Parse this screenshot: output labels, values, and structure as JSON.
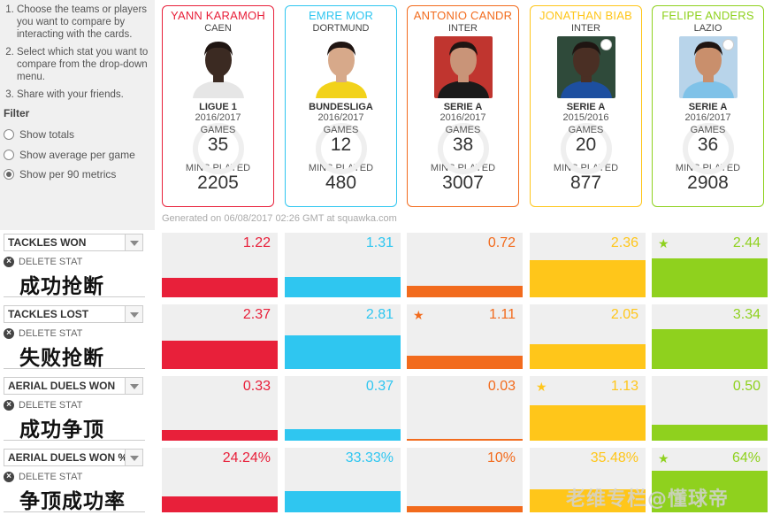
{
  "instructions": [
    "Choose the teams or players you want to compare by interacting with the cards.",
    "Select which stat you want to compare from the drop-down menu.",
    "Share with your friends."
  ],
  "filter": {
    "title": "Filter",
    "options": [
      {
        "label": "Show totals",
        "selected": false
      },
      {
        "label": "Show average per game",
        "selected": false
      },
      {
        "label": "Show per 90 metrics",
        "selected": true
      }
    ]
  },
  "players": [
    {
      "name": "YANN KARAMOH",
      "team": "CAEN",
      "league": "LIGUE 1",
      "season": "2016/2017",
      "games_label": "GAMES",
      "games": "35",
      "mins_label": "MINS PLAYED",
      "mins": "2205",
      "color": "#e8203a",
      "bg": "#ffffff",
      "skin": "#3b2a22",
      "shirt": "#e6e6e6",
      "badge": false
    },
    {
      "name": "EMRE MOR",
      "team": "DORTMUND",
      "league": "BUNDESLIGA",
      "season": "2016/2017",
      "games_label": "GAMES",
      "games": "12",
      "mins_label": "MINS PLAYED",
      "mins": "480",
      "color": "#2fc6f0",
      "bg": "#ffffff",
      "skin": "#d7a98a",
      "shirt": "#f2d21a",
      "badge": false
    },
    {
      "name": "ANTONIO CANDR",
      "team": "INTER",
      "league": "SERIE A",
      "season": "2016/2017",
      "games_label": "GAMES",
      "games": "38",
      "mins_label": "MINS PLAYED",
      "mins": "3007",
      "color": "#f26b1d",
      "bg": "#c0352f",
      "skin": "#c99478",
      "shirt": "#1a1a1a",
      "badge": false
    },
    {
      "name": "JONATHAN BIAB",
      "team": "INTER",
      "league": "SERIE A",
      "season": "2015/2016",
      "games_label": "GAMES",
      "games": "20",
      "mins_label": "MINS PLAYED",
      "mins": "877",
      "color": "#ffc61a",
      "bg": "#2f4a3a",
      "skin": "#4a2f24",
      "shirt": "#1d4fa0",
      "badge": true
    },
    {
      "name": "FELIPE ANDERS",
      "team": "LAZIO",
      "league": "SERIE A",
      "season": "2016/2017",
      "games_label": "GAMES",
      "games": "36",
      "mins_label": "MINS PLAYED",
      "mins": "2908",
      "color": "#8fd11e",
      "bg": "#b8d4ea",
      "skin": "#c98f6c",
      "shirt": "#7fc2e8",
      "badge": true
    }
  ],
  "generated": "Generated on 06/08/2017 02:26 GMT at squawka.com",
  "delete_label": "DELETE STAT",
  "stats": [
    {
      "name": "TACKLES WON",
      "cn": "成功抢断",
      "values": [
        "1.22",
        "1.31",
        "0.72",
        "2.36",
        "2.44"
      ],
      "fractions": [
        0.3,
        0.32,
        0.18,
        0.58,
        0.6
      ],
      "star": [
        false,
        false,
        false,
        false,
        true
      ]
    },
    {
      "name": "TACKLES LOST",
      "cn": "失败抢断",
      "values": [
        "2.37",
        "2.81",
        "1.11",
        "2.05",
        "3.34"
      ],
      "fractions": [
        0.44,
        0.52,
        0.2,
        0.38,
        0.62
      ],
      "star": [
        false,
        false,
        true,
        false,
        false
      ]
    },
    {
      "name": "AERIAL DUELS WON",
      "cn": "成功争顶",
      "values": [
        "0.33",
        "0.37",
        "0.03",
        "1.13",
        "0.50"
      ],
      "fractions": [
        0.16,
        0.18,
        0.02,
        0.55,
        0.24
      ],
      "star": [
        false,
        false,
        false,
        true,
        false
      ]
    },
    {
      "name": "AERIAL DUELS WON %",
      "cn": "争顶成功率",
      "values": [
        "24.24%",
        "33.33%",
        "10%",
        "35.48%",
        "64%"
      ],
      "fractions": [
        0.24,
        0.33,
        0.1,
        0.35,
        0.64
      ],
      "star": [
        false,
        false,
        false,
        false,
        true
      ]
    }
  ],
  "watermark": "老维专栏@懂球帝"
}
